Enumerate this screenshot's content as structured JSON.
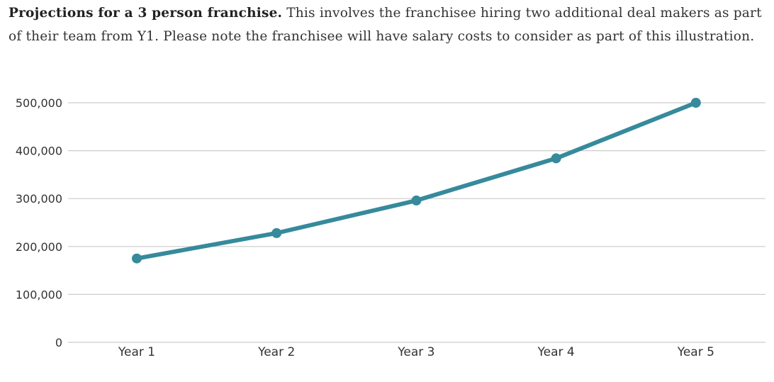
{
  "description": {
    "bold": "Projections for a 3 person franchise.",
    "text": " This involves the franchisee hiring two additional deal makers as part of their team from Y1. Please note the franchisee will have salary costs to consider as part of this illustration."
  },
  "chart_data": {
    "type": "line",
    "categories": [
      "Year 1",
      "Year 2",
      "Year 3",
      "Year 4",
      "Year 5"
    ],
    "series": [
      {
        "values": [
          175000,
          228000,
          296000,
          384000,
          500000
        ],
        "color": "#368a9c"
      }
    ],
    "y_ticks": [
      0,
      100000,
      200000,
      300000,
      400000,
      500000
    ],
    "y_tick_labels": [
      "0",
      "100,000",
      "200,000",
      "300,000",
      "400,000",
      "500,000"
    ],
    "ylim": [
      0,
      500000
    ],
    "grid": true,
    "grid_color": "#cccccc",
    "xlabel": "",
    "ylabel": ""
  }
}
